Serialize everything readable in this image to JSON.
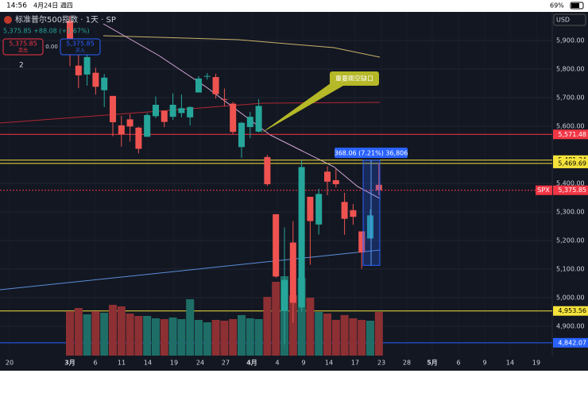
{
  "status_bar": {
    "time": "14:56",
    "date": "4月24日 週四",
    "battery": "69%"
  },
  "header": {
    "symbol_title": "标准普尔500指数 · 1天 · SP",
    "quote": "5,375.85 +88.08 (+1.67%)",
    "sell_price": "5,375.85",
    "sell_label": "卖出",
    "spread": "0.00",
    "buy_price": "5,375.85",
    "buy_label": "买入",
    "indicator_count": "2",
    "currency": "USD"
  },
  "chart": {
    "type": "candlestick",
    "ylim": [
      4750,
      6000
    ],
    "yticks": [
      {
        "value": 5900,
        "label": "5,900.00"
      },
      {
        "value": 5800,
        "label": "5,800.00"
      },
      {
        "value": 5700,
        "label": "5,700.00"
      },
      {
        "value": 5600,
        "label": "5,600.00"
      },
      {
        "value": 5400,
        "label": "5,400.00"
      },
      {
        "value": 5300,
        "label": "5,300.00"
      },
      {
        "value": 5200,
        "label": "5,200.00"
      },
      {
        "value": 5100,
        "label": "5,100.00"
      },
      {
        "value": 5000,
        "label": "5,000.00"
      },
      {
        "value": 4900,
        "label": "4,900.00"
      }
    ],
    "price_labels": [
      {
        "value": 5571.48,
        "label": "5,571.48",
        "color": "#f23645"
      },
      {
        "value": 5481.34,
        "label": "5,481.34",
        "color": "#f5e33b"
      },
      {
        "value": 5469.69,
        "label": "5,469.69",
        "color": "#f5e33b"
      },
      {
        "value": 5375.85,
        "label": "5,375.85",
        "color": "#f23645",
        "tag": "SPX"
      },
      {
        "value": 4953.56,
        "label": "4,953.56",
        "color": "#f5e33b"
      },
      {
        "value": 4842.07,
        "label": "4,842.07",
        "color": "#2962ff"
      }
    ],
    "x_labels": [
      "20",
      "3月",
      "6",
      "11",
      "14",
      "19",
      "24",
      "27",
      "4月",
      "4",
      "9",
      "14",
      "17",
      "23",
      "28",
      "5月",
      "6",
      "9",
      "14",
      "19"
    ],
    "candles": [
      {
        "open": 5969,
        "high": 5986,
        "low": 5810,
        "close": 5849,
        "volume": 5.6
      },
      {
        "open": 5812,
        "high": 5866,
        "low": 5733,
        "close": 5778,
        "volume": 6.0
      },
      {
        "open": 5781,
        "high": 5860,
        "low": 5742,
        "close": 5842,
        "volume": 5.2
      },
      {
        "open": 5787,
        "high": 5805,
        "low": 5711,
        "close": 5738,
        "volume": 5.6
      },
      {
        "open": 5726,
        "high": 5783,
        "low": 5667,
        "close": 5770,
        "volume": 5.4
      },
      {
        "open": 5706,
        "high": 5706,
        "low": 5565,
        "close": 5614,
        "volume": 6.4
      },
      {
        "open": 5603,
        "high": 5636,
        "low": 5529,
        "close": 5572,
        "volume": 6.2
      },
      {
        "open": 5624,
        "high": 5642,
        "low": 5546,
        "close": 5599,
        "volume": 5.3
      },
      {
        "open": 5595,
        "high": 5598,
        "low": 5505,
        "close": 5521,
        "volume": 5.0
      },
      {
        "open": 5563,
        "high": 5646,
        "low": 5563,
        "close": 5639,
        "volume": 5.0
      },
      {
        "open": 5635,
        "high": 5704,
        "low": 5628,
        "close": 5675,
        "volume": 4.7
      },
      {
        "open": 5654,
        "high": 5654,
        "low": 5597,
        "close": 5615,
        "volume": 4.6
      },
      {
        "open": 5633,
        "high": 5715,
        "low": 5622,
        "close": 5675,
        "volume": 4.8
      },
      {
        "open": 5646,
        "high": 5711,
        "low": 5631,
        "close": 5663,
        "volume": 4.6
      },
      {
        "open": 5631,
        "high": 5670,
        "low": 5603,
        "close": 5667,
        "volume": 7.1
      },
      {
        "open": 5718,
        "high": 5775,
        "low": 5718,
        "close": 5767,
        "volume": 4.5
      },
      {
        "open": 5776,
        "high": 5786,
        "low": 5763,
        "close": 5776,
        "volume": 4.2
      },
      {
        "open": 5772,
        "high": 5784,
        "low": 5697,
        "close": 5712,
        "volume": 4.5
      },
      {
        "open": 5695,
        "high": 5732,
        "low": 5670,
        "close": 5693,
        "volume": 4.4
      },
      {
        "open": 5679,
        "high": 5685,
        "low": 5572,
        "close": 5580,
        "volume": 4.6
      },
      {
        "open": 5527,
        "high": 5615,
        "low": 5489,
        "close": 5612,
        "volume": 5.1
      },
      {
        "open": 5597,
        "high": 5650,
        "low": 5558,
        "close": 5633,
        "volume": 4.7
      },
      {
        "open": 5581,
        "high": 5695,
        "low": 5578,
        "close": 5671,
        "volume": 4.6
      },
      {
        "open": 5492,
        "high": 5500,
        "low": 5391,
        "close": 5397,
        "volume": 7.4
      },
      {
        "open": 5292,
        "high": 5292,
        "low": 5070,
        "close": 5074,
        "volume": 9.3
      },
      {
        "open": 4953,
        "high": 5246,
        "low": 4836,
        "close": 5062,
        "volume": 10.0
      },
      {
        "open": 5193,
        "high": 5268,
        "low": 4911,
        "close": 4982,
        "volume": 7.6
      },
      {
        "open": 4966,
        "high": 5481,
        "low": 4950,
        "close": 5457,
        "volume": 9.8
      },
      {
        "open": 5353,
        "high": 5353,
        "low": 5115,
        "close": 5268,
        "volume": 7.3
      },
      {
        "open": 5256,
        "high": 5381,
        "low": 5221,
        "close": 5363,
        "volume": 5.5
      },
      {
        "open": 5441,
        "high": 5460,
        "low": 5359,
        "close": 5406,
        "volume": 5.3
      },
      {
        "open": 5411,
        "high": 5450,
        "low": 5386,
        "close": 5397,
        "volume": 4.5
      },
      {
        "open": 5335,
        "high": 5367,
        "low": 5220,
        "close": 5276,
        "volume": 5.1
      },
      {
        "open": 5306,
        "high": 5328,
        "low": 5255,
        "close": 5283,
        "volume": 4.7
      },
      {
        "open": 5232,
        "high": 5232,
        "low": 5101,
        "close": 5158,
        "volume": 4.5
      },
      {
        "open": 5207,
        "high": 5309,
        "low": 5207,
        "close": 5288,
        "volume": 4.4
      },
      {
        "open": 5395,
        "high": 5470,
        "low": 5358,
        "close": 5376,
        "volume": 5.5
      }
    ],
    "annotation": "重要跳空缺口",
    "measure": "368.06 (7.21%) 36,806"
  },
  "bottom_bar": {
    "symbol": "SPX",
    "interval": "1天"
  }
}
